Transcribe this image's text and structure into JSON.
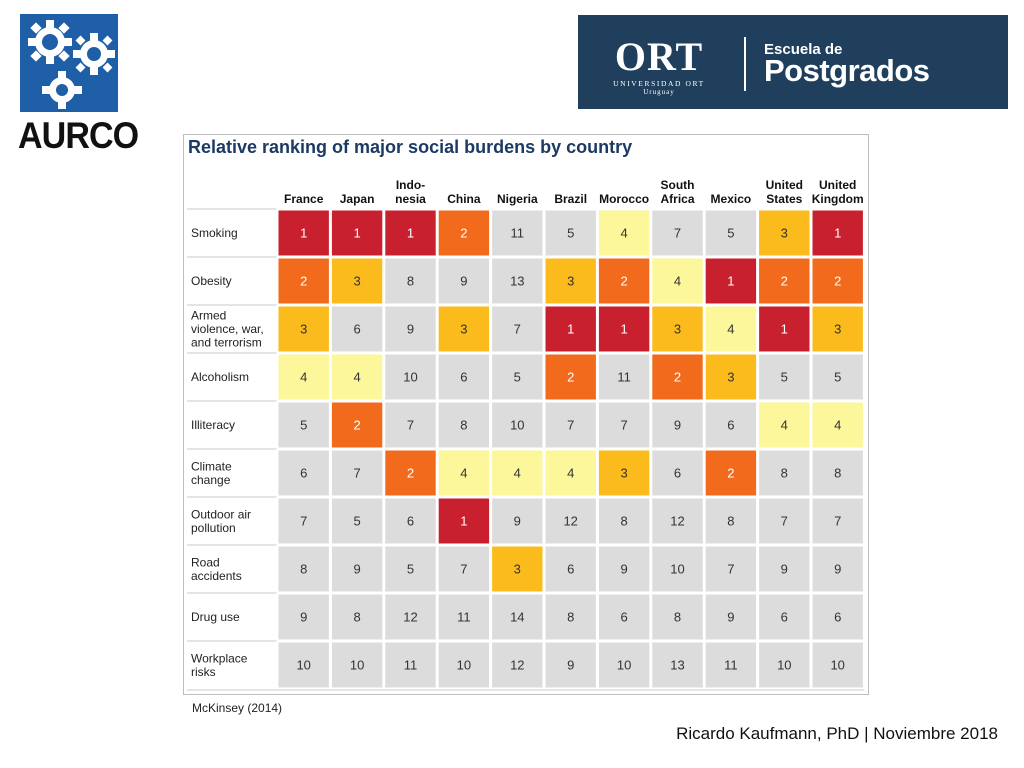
{
  "logos": {
    "aurco": {
      "name": "AURCO",
      "icon": "gears-icon",
      "colors": {
        "blue": "#1f5fa8",
        "text": "#111111"
      }
    },
    "ort": {
      "word": "ORT",
      "university": "UNIVERSIDAD ORT",
      "country": "Uruguay",
      "school_line1": "Escuela de",
      "school_line2": "Postgrados",
      "background": "#1f3f5d"
    }
  },
  "chart_data": {
    "type": "heatmap",
    "title": "Relative ranking of major social burdens by country",
    "columns": [
      [
        "France"
      ],
      [
        "Japan"
      ],
      [
        "Indo-",
        "nesia"
      ],
      [
        "China"
      ],
      [
        "Nigeria"
      ],
      [
        "Brazil"
      ],
      [
        "Morocco"
      ],
      [
        "South",
        "Africa"
      ],
      [
        "Mexico"
      ],
      [
        "United",
        "States"
      ],
      [
        "United",
        "Kingdom"
      ]
    ],
    "rows": [
      [
        "Smoking"
      ],
      [
        "Obesity"
      ],
      [
        "Armed",
        "violence, war,",
        "and terrorism"
      ],
      [
        "Alcoholism"
      ],
      [
        "Illiteracy"
      ],
      [
        "Climate",
        "change"
      ],
      [
        "Outdoor air",
        "pollution"
      ],
      [
        "Road",
        "accidents"
      ],
      [
        "Drug use"
      ],
      [
        "Workplace",
        "risks"
      ]
    ],
    "values": [
      [
        1,
        1,
        1,
        2,
        11,
        5,
        4,
        7,
        5,
        3,
        1
      ],
      [
        2,
        3,
        8,
        9,
        13,
        3,
        2,
        4,
        1,
        2,
        2
      ],
      [
        3,
        6,
        9,
        3,
        7,
        1,
        1,
        3,
        4,
        1,
        3
      ],
      [
        4,
        4,
        10,
        6,
        5,
        2,
        11,
        2,
        3,
        5,
        5
      ],
      [
        5,
        2,
        7,
        8,
        10,
        7,
        7,
        9,
        6,
        4,
        4
      ],
      [
        6,
        7,
        2,
        4,
        4,
        4,
        3,
        6,
        2,
        8,
        8
      ],
      [
        7,
        5,
        6,
        1,
        9,
        12,
        8,
        12,
        8,
        7,
        7
      ],
      [
        8,
        9,
        5,
        7,
        3,
        6,
        9,
        10,
        7,
        9,
        9
      ],
      [
        9,
        8,
        12,
        11,
        14,
        8,
        6,
        8,
        9,
        6,
        6
      ],
      [
        10,
        10,
        11,
        10,
        12,
        9,
        10,
        13,
        11,
        10,
        10
      ]
    ],
    "color_scale": {
      "1": "#c8202f",
      "2": "#f26a1b",
      "3": "#fbbb1c",
      "4": "#fbf79a",
      "other": "#dcdcdc"
    },
    "text_colors": {
      "dark_cell": "#ffffff",
      "light_cell": "#333333"
    }
  },
  "source_note": "McKinsey (2014)",
  "footer": "Ricardo Kaufmann, PhD   |   Noviembre 2018"
}
